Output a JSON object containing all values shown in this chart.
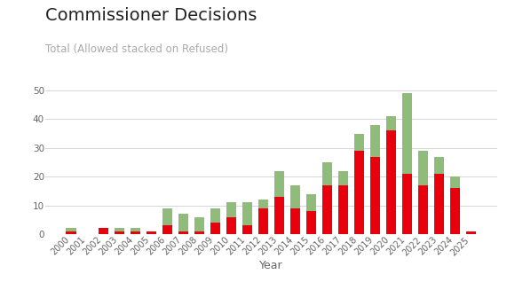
{
  "years": [
    2000,
    2001,
    2002,
    2003,
    2004,
    2005,
    2006,
    2007,
    2008,
    2009,
    2010,
    2011,
    2012,
    2013,
    2014,
    2015,
    2016,
    2017,
    2018,
    2019,
    2020,
    2021,
    2022,
    2023,
    2024,
    2025
  ],
  "refused": [
    1,
    0,
    2,
    1,
    1,
    1,
    3,
    1,
    1,
    4,
    6,
    3,
    9,
    13,
    9,
    8,
    17,
    17,
    29,
    27,
    36,
    21,
    17,
    21,
    16,
    1
  ],
  "allowed": [
    1,
    0,
    0,
    1,
    1,
    0,
    6,
    6,
    5,
    5,
    5,
    8,
    3,
    9,
    8,
    6,
    8,
    5,
    6,
    11,
    5,
    28,
    12,
    6,
    4,
    0
  ],
  "title": "Commissioner Decisions",
  "subtitle": "Total (Allowed stacked on Refused)",
  "xlabel": "Year",
  "ylim_max": 55,
  "yticks": [
    0,
    10,
    20,
    30,
    40,
    50
  ],
  "refused_color": "#e8000d",
  "allowed_color": "#8fbc7a",
  "title_fontsize": 14,
  "subtitle_fontsize": 8.5,
  "subtitle_color": "#aaaaaa",
  "title_color": "#222222",
  "bg_color": "#ffffff",
  "grid_color": "#d0d0d0",
  "tick_color": "#666666",
  "xlabel_fontsize": 9,
  "tick_fontsize": 7,
  "ytick_fontsize": 7.5
}
